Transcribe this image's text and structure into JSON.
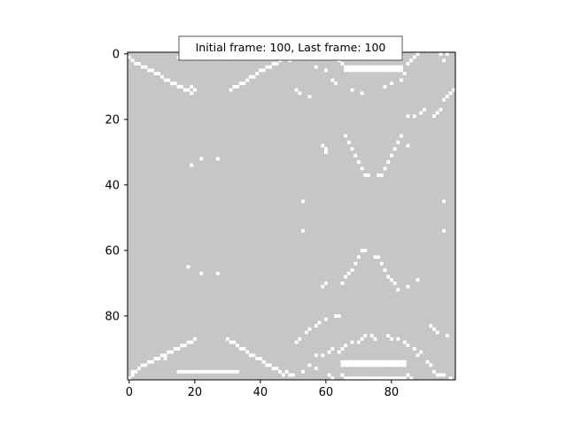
{
  "chart_data": {
    "type": "heatmap",
    "annotation": "Initial frame: 100, Last frame: 100",
    "grid_size": [
      100,
      100
    ],
    "background_color": "#c6c6c6",
    "cell_color": "#ffffff",
    "xlim": [
      0,
      100
    ],
    "ylim": [
      100,
      0
    ],
    "xticks": [
      0,
      20,
      40,
      60,
      80
    ],
    "yticks": [
      0,
      20,
      40,
      60,
      80
    ],
    "x_tick_labels": [
      "0",
      "20",
      "40",
      "60",
      "80"
    ],
    "y_tick_labels": [
      "0",
      "20",
      "40",
      "60",
      "80"
    ],
    "white_cells": [
      [
        0,
        1
      ],
      [
        1,
        2
      ],
      [
        2,
        3
      ],
      [
        3,
        3
      ],
      [
        4,
        4
      ],
      [
        5,
        4
      ],
      [
        6,
        5
      ],
      [
        7,
        5
      ],
      [
        8,
        6
      ],
      [
        9,
        6
      ],
      [
        10,
        7
      ],
      [
        11,
        8
      ],
      [
        12,
        8
      ],
      [
        13,
        9
      ],
      [
        14,
        9
      ],
      [
        15,
        10
      ],
      [
        16,
        10
      ],
      [
        17,
        11
      ],
      [
        18,
        11
      ],
      [
        19,
        10
      ],
      [
        19,
        12
      ],
      [
        20,
        11
      ],
      [
        31,
        11
      ],
      [
        32,
        10
      ],
      [
        33,
        10
      ],
      [
        34,
        9
      ],
      [
        35,
        9
      ],
      [
        36,
        8
      ],
      [
        37,
        7
      ],
      [
        38,
        7
      ],
      [
        39,
        6
      ],
      [
        40,
        5
      ],
      [
        41,
        5
      ],
      [
        42,
        4
      ],
      [
        43,
        4
      ],
      [
        44,
        3
      ],
      [
        45,
        3
      ],
      [
        46,
        2
      ],
      [
        47,
        1
      ],
      [
        49,
        2
      ],
      [
        48,
        0
      ],
      [
        51,
        11
      ],
      [
        52,
        12
      ],
      [
        55,
        13
      ],
      [
        57,
        4
      ],
      [
        60,
        5
      ],
      [
        62,
        8
      ],
      [
        63,
        9
      ],
      [
        64,
        2
      ],
      [
        65,
        3
      ],
      [
        68,
        11
      ],
      [
        71,
        12
      ],
      [
        82,
        4
      ],
      [
        83,
        4
      ],
      [
        85,
        3
      ],
      [
        86,
        2
      ],
      [
        87,
        1
      ],
      [
        88,
        0
      ],
      [
        95,
        0
      ],
      [
        97,
        0
      ],
      [
        96,
        2
      ],
      [
        78,
        10
      ],
      [
        80,
        9
      ],
      [
        83,
        8
      ],
      [
        84,
        6
      ],
      [
        93,
        19
      ],
      [
        94,
        18
      ],
      [
        95,
        17
      ],
      [
        96,
        14
      ],
      [
        97,
        13
      ],
      [
        98,
        12
      ],
      [
        99,
        11
      ],
      [
        85,
        19
      ],
      [
        87,
        19
      ],
      [
        89,
        18
      ],
      [
        90,
        17
      ],
      [
        15,
        1
      ],
      [
        16,
        1
      ],
      [
        17,
        1
      ],
      [
        18,
        1
      ],
      [
        19,
        1
      ],
      [
        20,
        1
      ],
      [
        21,
        1
      ],
      [
        22,
        1
      ],
      [
        23,
        1
      ],
      [
        24,
        1
      ],
      [
        25,
        1
      ],
      [
        26,
        1
      ],
      [
        27,
        1
      ],
      [
        28,
        1
      ],
      [
        29,
        1
      ],
      [
        30,
        1
      ],
      [
        31,
        1
      ],
      [
        32,
        1
      ],
      [
        33,
        1
      ],
      [
        34,
        1
      ],
      [
        35,
        1
      ],
      [
        36,
        1
      ],
      [
        37,
        1
      ],
      [
        38,
        1
      ],
      [
        39,
        1
      ],
      [
        40,
        1
      ],
      [
        41,
        1
      ],
      [
        42,
        1
      ],
      [
        43,
        1
      ],
      [
        44,
        1
      ],
      [
        45,
        1
      ],
      [
        46,
        1
      ],
      [
        47,
        1
      ],
      [
        48,
        1
      ],
      [
        49,
        1
      ],
      [
        50,
        1
      ],
      [
        51,
        1
      ],
      [
        52,
        1
      ],
      [
        53,
        1
      ],
      [
        54,
        1
      ],
      [
        55,
        1
      ],
      [
        56,
        1
      ],
      [
        57,
        1
      ],
      [
        58,
        1
      ],
      [
        59,
        1
      ],
      [
        60,
        1
      ],
      [
        61,
        1
      ],
      [
        62,
        1
      ],
      [
        63,
        1
      ],
      [
        64,
        1
      ],
      [
        65,
        1
      ],
      [
        66,
        1
      ],
      [
        67,
        1
      ],
      [
        68,
        1
      ],
      [
        69,
        1
      ],
      [
        70,
        1
      ],
      [
        71,
        1
      ],
      [
        72,
        1
      ],
      [
        73,
        1
      ],
      [
        74,
        1
      ],
      [
        75,
        1
      ],
      [
        76,
        1
      ],
      [
        77,
        1
      ],
      [
        78,
        1
      ],
      [
        79,
        1
      ],
      [
        80,
        1
      ],
      [
        81,
        1
      ],
      [
        82,
        1
      ],
      [
        83,
        1
      ],
      [
        66,
        4
      ],
      [
        67,
        4
      ],
      [
        68,
        4
      ],
      [
        69,
        4
      ],
      [
        70,
        4
      ],
      [
        71,
        4
      ],
      [
        72,
        4
      ],
      [
        73,
        4
      ],
      [
        74,
        4
      ],
      [
        75,
        4
      ],
      [
        76,
        4
      ],
      [
        77,
        4
      ],
      [
        78,
        4
      ],
      [
        79,
        4
      ],
      [
        80,
        4
      ],
      [
        81,
        4
      ],
      [
        82,
        4
      ],
      [
        83,
        4
      ],
      [
        66,
        5
      ],
      [
        67,
        5
      ],
      [
        68,
        5
      ],
      [
        69,
        5
      ],
      [
        70,
        5
      ],
      [
        71,
        5
      ],
      [
        72,
        5
      ],
      [
        73,
        5
      ],
      [
        74,
        5
      ],
      [
        75,
        5
      ],
      [
        76,
        5
      ],
      [
        77,
        5
      ],
      [
        78,
        5
      ],
      [
        79,
        5
      ],
      [
        80,
        5
      ],
      [
        81,
        5
      ],
      [
        82,
        5
      ],
      [
        83,
        5
      ],
      [
        66,
        25
      ],
      [
        67,
        27
      ],
      [
        68,
        29
      ],
      [
        69,
        31
      ],
      [
        70,
        33
      ],
      [
        71,
        35
      ],
      [
        72,
        37
      ],
      [
        73,
        37
      ],
      [
        76,
        37
      ],
      [
        77,
        37
      ],
      [
        78,
        35
      ],
      [
        79,
        33
      ],
      [
        80,
        31
      ],
      [
        81,
        29
      ],
      [
        82,
        27
      ],
      [
        83,
        25
      ],
      [
        59,
        28
      ],
      [
        60,
        29
      ],
      [
        60,
        30
      ],
      [
        85,
        28
      ],
      [
        19,
        34
      ],
      [
        22,
        32
      ],
      [
        27,
        32
      ],
      [
        53,
        45
      ],
      [
        53,
        54
      ],
      [
        96,
        45
      ],
      [
        96,
        54
      ],
      [
        18,
        65
      ],
      [
        22,
        67
      ],
      [
        27,
        67
      ],
      [
        65,
        70
      ],
      [
        66,
        68
      ],
      [
        67,
        67
      ],
      [
        68,
        66
      ],
      [
        69,
        64
      ],
      [
        70,
        62
      ],
      [
        71,
        60
      ],
      [
        72,
        60
      ],
      [
        75,
        62
      ],
      [
        76,
        62
      ],
      [
        77,
        64
      ],
      [
        78,
        66
      ],
      [
        79,
        68
      ],
      [
        80,
        69
      ],
      [
        81,
        70
      ],
      [
        82,
        72
      ],
      [
        85,
        71
      ],
      [
        59,
        71
      ],
      [
        60,
        70
      ],
      [
        88,
        69
      ],
      [
        0,
        99
      ],
      [
        1,
        98
      ],
      [
        1,
        97
      ],
      [
        2,
        97
      ],
      [
        3,
        96
      ],
      [
        4,
        95
      ],
      [
        5,
        95
      ],
      [
        6,
        94
      ],
      [
        7,
        94
      ],
      [
        8,
        93
      ],
      [
        9,
        93
      ],
      [
        10,
        92
      ],
      [
        11,
        92
      ],
      [
        12,
        91
      ],
      [
        13,
        91
      ],
      [
        14,
        90
      ],
      [
        15,
        90
      ],
      [
        16,
        89
      ],
      [
        17,
        89
      ],
      [
        18,
        88
      ],
      [
        19,
        88
      ],
      [
        20,
        87
      ],
      [
        11,
        93
      ],
      [
        30,
        87
      ],
      [
        31,
        88
      ],
      [
        32,
        88
      ],
      [
        33,
        89
      ],
      [
        34,
        90
      ],
      [
        35,
        90
      ],
      [
        36,
        91
      ],
      [
        37,
        92
      ],
      [
        38,
        92
      ],
      [
        39,
        93
      ],
      [
        40,
        93
      ],
      [
        41,
        94
      ],
      [
        42,
        95
      ],
      [
        43,
        95
      ],
      [
        44,
        96
      ],
      [
        45,
        96
      ],
      [
        46,
        97
      ],
      [
        47,
        98
      ],
      [
        48,
        97
      ],
      [
        49,
        98
      ],
      [
        50,
        98
      ],
      [
        51,
        88
      ],
      [
        52,
        87
      ],
      [
        54,
        85
      ],
      [
        55,
        84
      ],
      [
        57,
        83
      ],
      [
        58,
        82
      ],
      [
        60,
        81
      ],
      [
        63,
        80
      ],
      [
        64,
        80
      ],
      [
        57,
        92
      ],
      [
        59,
        92
      ],
      [
        61,
        91
      ],
      [
        62,
        90
      ],
      [
        64,
        91
      ],
      [
        65,
        90
      ],
      [
        66,
        89
      ],
      [
        68,
        88
      ],
      [
        70,
        88
      ],
      [
        71,
        87
      ],
      [
        72,
        86
      ],
      [
        74,
        86
      ],
      [
        75,
        87
      ],
      [
        79,
        86
      ],
      [
        80,
        87
      ],
      [
        82,
        87
      ],
      [
        84,
        88
      ],
      [
        85,
        89
      ],
      [
        87,
        90
      ],
      [
        88,
        92
      ],
      [
        89,
        91
      ],
      [
        91,
        94
      ],
      [
        92,
        95
      ],
      [
        93,
        97
      ],
      [
        94,
        98
      ],
      [
        95,
        98
      ],
      [
        96,
        98
      ],
      [
        98,
        99
      ],
      [
        92,
        83
      ],
      [
        93,
        84
      ],
      [
        94,
        85
      ],
      [
        97,
        86
      ],
      [
        53,
        97
      ],
      [
        55,
        95
      ],
      [
        57,
        96
      ],
      [
        61,
        98
      ],
      [
        62,
        99
      ],
      [
        65,
        98
      ],
      [
        66,
        99
      ],
      [
        85,
        98
      ],
      [
        86,
        99
      ],
      [
        15,
        97
      ],
      [
        16,
        97
      ],
      [
        17,
        97
      ],
      [
        18,
        97
      ],
      [
        19,
        97
      ],
      [
        20,
        97
      ],
      [
        21,
        97
      ],
      [
        22,
        97
      ],
      [
        23,
        97
      ],
      [
        24,
        97
      ],
      [
        25,
        97
      ],
      [
        26,
        97
      ],
      [
        27,
        97
      ],
      [
        28,
        97
      ],
      [
        29,
        97
      ],
      [
        30,
        97
      ],
      [
        31,
        97
      ],
      [
        32,
        97
      ],
      [
        33,
        97
      ],
      [
        65,
        94
      ],
      [
        66,
        94
      ],
      [
        67,
        94
      ],
      [
        68,
        94
      ],
      [
        69,
        94
      ],
      [
        70,
        94
      ],
      [
        71,
        94
      ],
      [
        72,
        94
      ],
      [
        73,
        94
      ],
      [
        74,
        94
      ],
      [
        75,
        94
      ],
      [
        76,
        94
      ],
      [
        77,
        94
      ],
      [
        78,
        94
      ],
      [
        79,
        94
      ],
      [
        80,
        94
      ],
      [
        81,
        94
      ],
      [
        82,
        94
      ],
      [
        83,
        94
      ],
      [
        84,
        94
      ],
      [
        65,
        95
      ],
      [
        66,
        95
      ],
      [
        67,
        95
      ],
      [
        68,
        95
      ],
      [
        69,
        95
      ],
      [
        70,
        95
      ],
      [
        71,
        95
      ],
      [
        72,
        95
      ],
      [
        73,
        95
      ],
      [
        74,
        95
      ],
      [
        75,
        95
      ],
      [
        76,
        95
      ],
      [
        77,
        95
      ],
      [
        78,
        95
      ],
      [
        79,
        95
      ],
      [
        80,
        95
      ],
      [
        81,
        95
      ],
      [
        82,
        95
      ],
      [
        83,
        95
      ],
      [
        84,
        95
      ],
      [
        67,
        99
      ],
      [
        68,
        99
      ],
      [
        69,
        99
      ],
      [
        70,
        99
      ],
      [
        71,
        99
      ],
      [
        72,
        99
      ],
      [
        73,
        99
      ],
      [
        74,
        99
      ],
      [
        75,
        99
      ],
      [
        76,
        99
      ],
      [
        77,
        99
      ],
      [
        78,
        99
      ],
      [
        79,
        99
      ],
      [
        80,
        99
      ],
      [
        81,
        99
      ],
      [
        82,
        99
      ],
      [
        83,
        99
      ],
      [
        84,
        99
      ]
    ]
  }
}
